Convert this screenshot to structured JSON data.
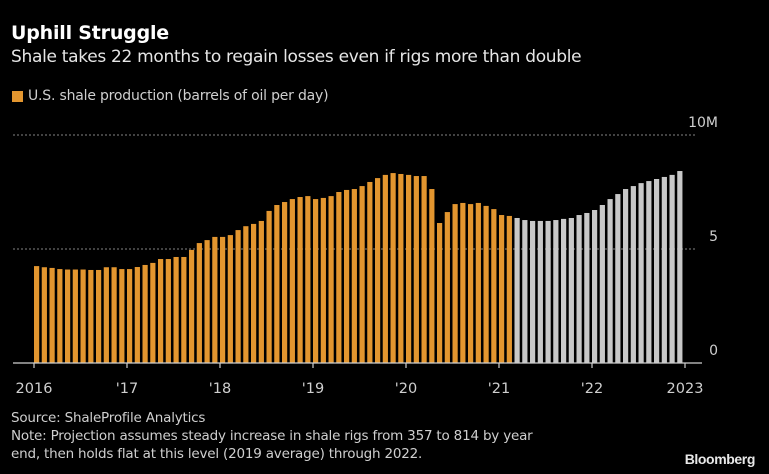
{
  "header": {
    "title": "Uphill Struggle",
    "subtitle": "Shale takes 22 months to regain losses even if rigs more than double"
  },
  "legend": {
    "label": "U.S. shale production (barrels of oil per day)",
    "color": "#e3962f"
  },
  "footer": {
    "source": "Source: ShaleProfile Analytics",
    "note_line1": "Note: Projection assumes steady increase in shale rigs from 357 to 814 by year",
    "note_line2": "end, then holds flat at this level (2019 average) through 2022.",
    "brand": "Bloomberg"
  },
  "chart_data": {
    "type": "bar",
    "title": "Uphill Struggle",
    "subtitle": "Shale takes 22 months to regain losses even if rigs more than double",
    "xlabel": "",
    "ylabel": "U.S. shale production (barrels of oil per day)",
    "ylim": [
      0,
      10
    ],
    "y_unit": "million barrels per day",
    "y_ticks": [
      0,
      5,
      10
    ],
    "y_tick_labels": [
      "0",
      "5",
      "10M"
    ],
    "x_ticks": [
      "2016",
      "'17",
      "'18",
      "'19",
      "'20",
      "'21",
      "'22",
      "2023"
    ],
    "grid": true,
    "legend_position": "top-left",
    "colors": {
      "actual": "#e3962f",
      "projection": "#c8c8c8"
    },
    "series": [
      {
        "name": "U.S. shale production (actual)",
        "start": "2016-01",
        "values": [
          4.25,
          4.2,
          4.17,
          4.12,
          4.1,
          4.1,
          4.1,
          4.08,
          4.08,
          4.2,
          4.2,
          4.12,
          4.12,
          4.21,
          4.3,
          4.39,
          4.56,
          4.56,
          4.65,
          4.65,
          4.96,
          5.26,
          5.39,
          5.53,
          5.53,
          5.61,
          5.83,
          6.0,
          6.1,
          6.23,
          6.67,
          6.93,
          7.06,
          7.19,
          7.28,
          7.32,
          7.19,
          7.24,
          7.32,
          7.5,
          7.59,
          7.63,
          7.76,
          7.94,
          8.11,
          8.25,
          8.33,
          8.29,
          8.25,
          8.2,
          8.2,
          7.63,
          6.14,
          6.62,
          6.97,
          7.02,
          6.97,
          7.02,
          6.89,
          6.75,
          6.49,
          6.45
        ]
      },
      {
        "name": "Projection",
        "start": "2021-03",
        "values": [
          6.36,
          6.27,
          6.23,
          6.23,
          6.23,
          6.27,
          6.32,
          6.36,
          6.49,
          6.58,
          6.71,
          6.93,
          7.19,
          7.41,
          7.63,
          7.76,
          7.89,
          7.98,
          8.07,
          8.16,
          8.25,
          8.42
        ]
      }
    ]
  }
}
